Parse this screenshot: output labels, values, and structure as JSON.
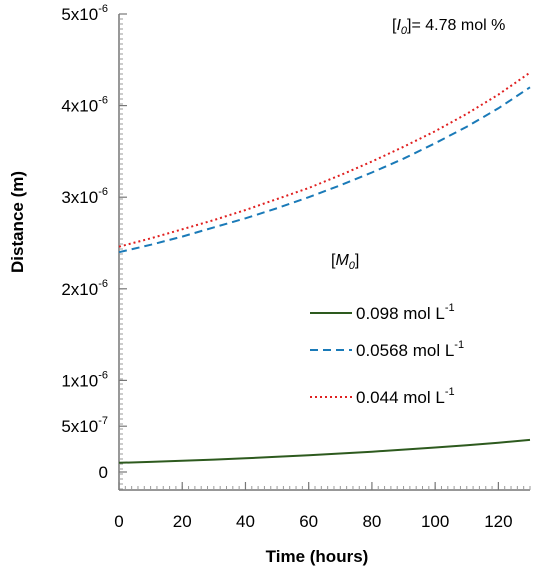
{
  "chart_data": {
    "type": "line",
    "title": "",
    "xlabel": "Time (hours)",
    "ylabel": "Distance (m)",
    "xlim": [
      0,
      130
    ],
    "ylim": [
      0,
      5e-06
    ],
    "x_ticks": [
      0,
      20,
      40,
      60,
      80,
      100,
      120
    ],
    "x_tick_labels": [
      "0",
      "20",
      "40",
      "60",
      "80",
      "100",
      "120"
    ],
    "y_ticks": [
      0,
      5e-07,
      1e-06,
      2e-06,
      3e-06,
      4e-06,
      5e-06
    ],
    "y_tick_labels": [
      "0",
      "5x10",
      "1x10",
      "2x10",
      "3x10",
      "4x10",
      "5x10"
    ],
    "y_tick_exponents": [
      "",
      "-7",
      "-6",
      "-6",
      "-6",
      "-6",
      "-6"
    ],
    "grid": false,
    "legend_placement": "center-right",
    "annotation": {
      "bracket_open": "[",
      "symbol": "I",
      "subscript": "0",
      "bracket_close": "]",
      "value_text": "= 4.78 mol %"
    },
    "legend_title": {
      "bracket_open": "[",
      "symbol": "M",
      "subscript": "0",
      "bracket_close": "]"
    },
    "series": [
      {
        "name": "0.098 mol L",
        "name_exp": "-1",
        "color": "#2d5a1e",
        "dash": "solid",
        "x": [
          0,
          10,
          20,
          30,
          40,
          50,
          60,
          70,
          80,
          90,
          100,
          110,
          120,
          130
        ],
        "y": [
          1e-07,
          1.1e-07,
          1.22e-07,
          1.35e-07,
          1.5e-07,
          1.66e-07,
          1.83e-07,
          2.02e-07,
          2.22e-07,
          2.44e-07,
          2.68e-07,
          2.93e-07,
          3.2e-07,
          3.5e-07
        ]
      },
      {
        "name": "0.0568 mol L",
        "name_exp": "-1",
        "color": "#1a7ab8",
        "dash": "dashed",
        "x": [
          0,
          10,
          20,
          30,
          40,
          50,
          60,
          70,
          80,
          90,
          100,
          110,
          120,
          130
        ],
        "y": [
          2.4e-06,
          2.48e-06,
          2.57e-06,
          2.67e-06,
          2.77e-06,
          2.88e-06,
          3e-06,
          3.13e-06,
          3.27e-06,
          3.42e-06,
          3.59e-06,
          3.77e-06,
          3.97e-06,
          4.2e-06
        ]
      },
      {
        "name": "0.044 mol L",
        "name_exp": "-1",
        "color": "#e02020",
        "dash": "dotted",
        "x": [
          0,
          10,
          20,
          30,
          40,
          50,
          60,
          70,
          80,
          90,
          100,
          110,
          120,
          130
        ],
        "y": [
          2.46e-06,
          2.55e-06,
          2.65e-06,
          2.75e-06,
          2.86e-06,
          2.98e-06,
          3.1e-06,
          3.24e-06,
          3.39e-06,
          3.55e-06,
          3.72e-06,
          3.91e-06,
          4.12e-06,
          4.36e-06
        ]
      }
    ]
  }
}
